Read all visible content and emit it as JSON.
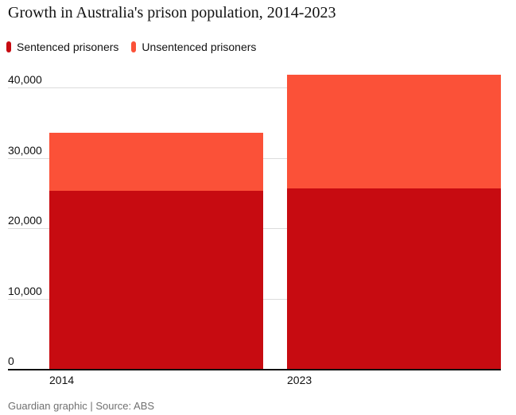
{
  "title": "Growth in Australia's prison population, 2014-2023",
  "legend": [
    {
      "label": "Sentenced prisoners",
      "color": "#c70b11"
    },
    {
      "label": "Unsentenced prisoners",
      "color": "#fb5138"
    }
  ],
  "footer": "Guardian graphic | Source: ABS",
  "colors": {
    "sentenced": "#c70b11",
    "unsentenced": "#fb5138",
    "gridline": "#dcdcdc",
    "axis": "#121212",
    "footer_text": "#707070"
  },
  "chart_data": {
    "type": "bar",
    "stacked": true,
    "title": "Growth in Australia's prison population, 2014-2023",
    "categories": [
      "2014",
      "2023"
    ],
    "series": [
      {
        "name": "Sentenced prisoners",
        "color": "#c70b11",
        "values": [
          25300,
          25600
        ]
      },
      {
        "name": "Unsentenced prisoners",
        "color": "#fb5138",
        "values": [
          8300,
          16200
        ]
      }
    ],
    "totals": [
      33600,
      41800
    ],
    "xlabel": "",
    "ylabel": "",
    "ylim": [
      0,
      40000
    ],
    "yticks": [
      0,
      10000,
      20000,
      30000,
      40000
    ],
    "ytick_labels": [
      "0",
      "10,000",
      "20,000",
      "30,000",
      "40,000"
    ],
    "grid": true,
    "legend_position": "top",
    "source_note": "Guardian graphic | Source: ABS"
  }
}
